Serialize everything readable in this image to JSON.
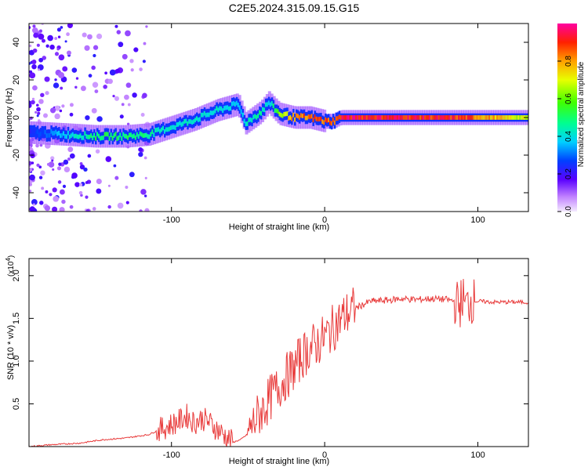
{
  "title": "C2E5.2024.315.09.15.G15",
  "colors": {
    "snr_line": "#e83a3a",
    "axis": "#000000",
    "background": "#ffffff"
  },
  "chart_data": [
    {
      "type": "heatmap",
      "title": "C2E5.2024.315.09.15.G15",
      "xlabel": "Height of straight line (km)",
      "ylabel": "Frequency (Hz)",
      "xlim": [
        -193,
        133
      ],
      "ylim": [
        -50,
        50
      ],
      "x_ticks": [
        -100,
        0,
        100
      ],
      "x_tick_labels": [
        "-100",
        "0",
        "100"
      ],
      "y_ticks": [
        -40,
        -20,
        0,
        20,
        40
      ],
      "y_tick_labels": [
        "-40",
        "-20",
        "0",
        "20",
        "40"
      ],
      "colorbar": {
        "label": "Normalized spectral amplitude",
        "range": [
          0,
          1
        ],
        "ticks": [
          0.0,
          0.2,
          0.4,
          0.6,
          0.8
        ],
        "tick_labels": [
          "0.0",
          "0.2",
          "0.4",
          "0.6",
          "0.8"
        ],
        "colormap": "rainbow"
      },
      "ridge": {
        "description": "dominant frequency ridge",
        "points": [
          {
            "x": -193,
            "y": -8,
            "amp": 0.25
          },
          {
            "x": -170,
            "y": -9,
            "amp": 0.4
          },
          {
            "x": -150,
            "y": -10,
            "amp": 0.55
          },
          {
            "x": -130,
            "y": -10,
            "amp": 0.55
          },
          {
            "x": -115,
            "y": -9,
            "amp": 0.5
          },
          {
            "x": -100,
            "y": -5,
            "amp": 0.45
          },
          {
            "x": -85,
            "y": -1,
            "amp": 0.45
          },
          {
            "x": -70,
            "y": 4,
            "amp": 0.45
          },
          {
            "x": -57,
            "y": 7,
            "amp": 0.4
          },
          {
            "x": -52,
            "y": -3,
            "amp": 0.45
          },
          {
            "x": -42,
            "y": 3,
            "amp": 0.5
          },
          {
            "x": -37,
            "y": 8,
            "amp": 0.4
          },
          {
            "x": -30,
            "y": 2,
            "amp": 0.7
          },
          {
            "x": -20,
            "y": 0,
            "amp": 0.9
          },
          {
            "x": -10,
            "y": 0,
            "amp": 0.9
          },
          {
            "x": 0,
            "y": -2,
            "amp": 0.95
          },
          {
            "x": 5,
            "y": -2,
            "amp": 0.9
          },
          {
            "x": 10,
            "y": 0,
            "amp": 1.0
          },
          {
            "x": 50,
            "y": 0,
            "amp": 1.0
          },
          {
            "x": 90,
            "y": 0,
            "amp": 0.95
          },
          {
            "x": 133,
            "y": 0,
            "amp": 0.7
          }
        ]
      }
    },
    {
      "type": "line",
      "xlabel": "Height of straight line (km)",
      "ylabel": "SNR (10 * v/v)",
      "y_scale_label": "(x10",
      "y_scale_exponent": "4",
      "xlim": [
        -193,
        133
      ],
      "ylim": [
        0,
        2.2
      ],
      "x_ticks": [
        -100,
        0,
        100
      ],
      "x_tick_labels": [
        "-100",
        "0",
        "100"
      ],
      "y_ticks": [
        0.5,
        1.0,
        1.5,
        2.0
      ],
      "y_tick_labels": [
        "0.5",
        "1.0",
        "1.5",
        "2.0"
      ],
      "series": [
        {
          "color": "#e83a3a",
          "x": [
            -193,
            -180,
            -160,
            -145,
            -130,
            -115,
            -105,
            -95,
            -90,
            -85,
            -80,
            -75,
            -70,
            -60,
            -55,
            -50,
            -45,
            -40,
            -35,
            -30,
            -25,
            -20,
            -15,
            -10,
            -5,
            0,
            5,
            10,
            15,
            20,
            25,
            30,
            40,
            50,
            60,
            70,
            80,
            85,
            88,
            90,
            92,
            95,
            100,
            110,
            120,
            133
          ],
          "y": [
            0.0,
            0.02,
            0.04,
            0.08,
            0.1,
            0.14,
            0.22,
            0.3,
            0.36,
            0.28,
            0.33,
            0.28,
            0.2,
            0.05,
            0.08,
            0.15,
            0.32,
            0.45,
            0.58,
            0.7,
            0.82,
            0.92,
            1.05,
            1.15,
            1.2,
            1.28,
            1.38,
            1.48,
            1.56,
            1.62,
            1.66,
            1.7,
            1.71,
            1.73,
            1.72,
            1.73,
            1.72,
            1.7,
            1.65,
            1.75,
            1.64,
            1.71,
            1.7,
            1.69,
            1.69,
            1.69
          ]
        }
      ]
    }
  ]
}
